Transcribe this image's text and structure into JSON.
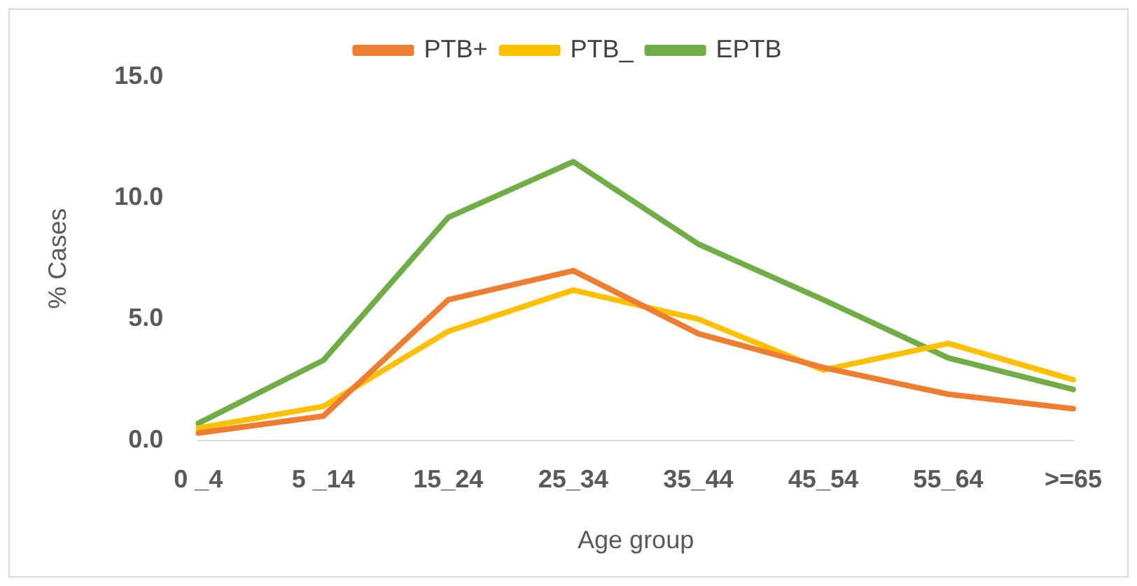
{
  "chart_data": {
    "type": "line",
    "xlabel": "Age group",
    "ylabel": "% Cases",
    "categories": [
      "0 _4",
      "5 _14",
      "15_24",
      "25_34",
      "35_44",
      "45_54",
      "55_64",
      ">=65"
    ],
    "series": [
      {
        "name": "PTB+",
        "color": "#ed7d31",
        "values": [
          0.3,
          1.0,
          5.8,
          7.0,
          4.4,
          3.0,
          1.9,
          1.3
        ]
      },
      {
        "name": "PTB_",
        "color": "#ffc000",
        "values": [
          0.5,
          1.4,
          4.5,
          6.2,
          5.0,
          2.9,
          4.0,
          2.5
        ]
      },
      {
        "name": "EPTB",
        "color": "#70ad47",
        "values": [
          0.7,
          3.3,
          9.2,
          11.5,
          8.1,
          5.8,
          3.4,
          2.1
        ]
      }
    ],
    "ylim": [
      0,
      15
    ],
    "yticks": [
      {
        "value": 0,
        "label": "0.0"
      },
      {
        "value": 5,
        "label": "5.0"
      },
      {
        "value": 10,
        "label": "10.0"
      },
      {
        "value": 15,
        "label": "15.0"
      }
    ],
    "grid": false,
    "legend": "top",
    "marker": "none",
    "line_style": "solid"
  }
}
